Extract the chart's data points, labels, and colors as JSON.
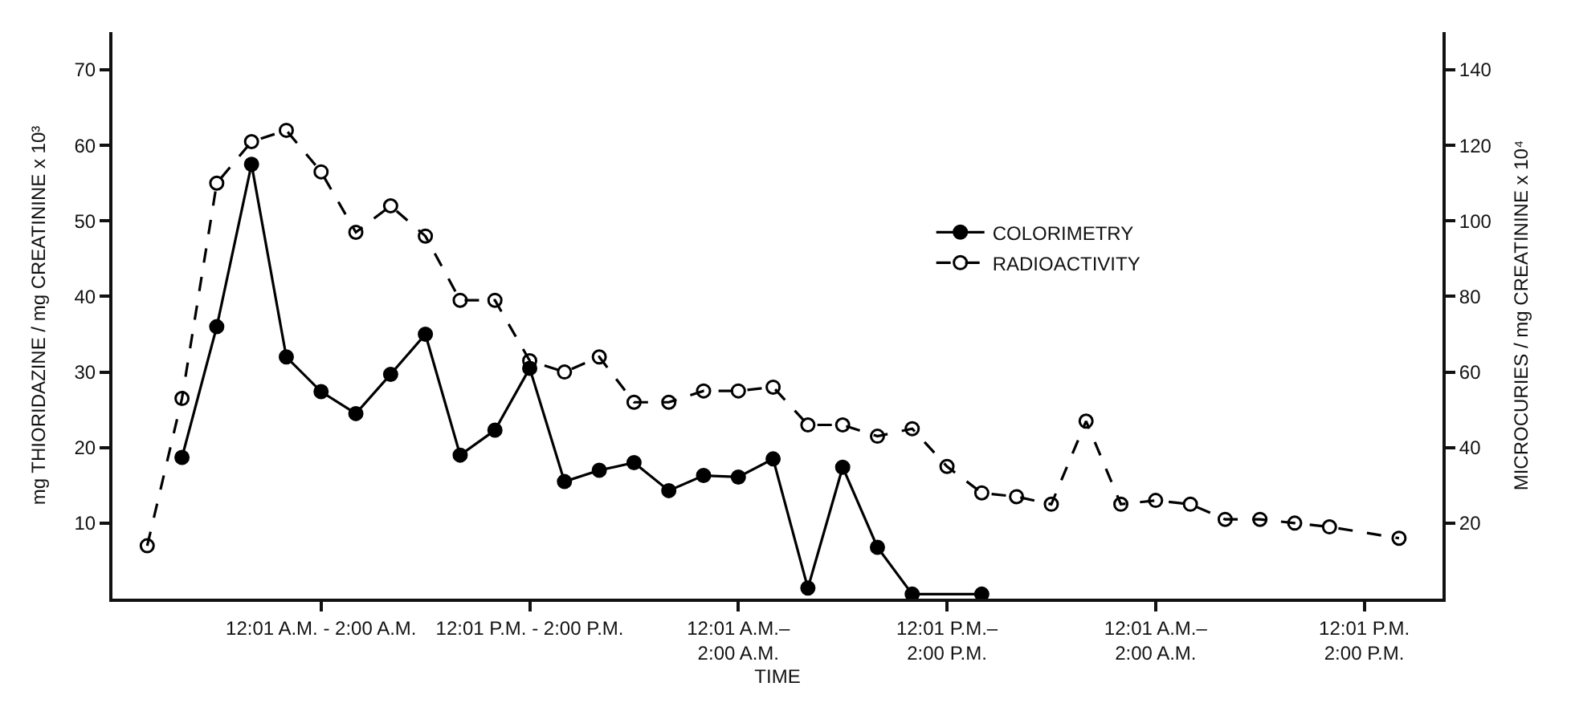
{
  "chart_data": {
    "type": "line",
    "xlabel": "TIME",
    "ylabel": "mg THIORIDAZINE / mg CREATININE x 10³",
    "y2label": "MICROCURIES / mg CREATININE x 10⁴",
    "categories": [
      null,
      null,
      null,
      null,
      null,
      "12:01 A.M. - 2:00 A.M.",
      null,
      null,
      null,
      null,
      null,
      "12:01 P.M. - 2:00 P.M.",
      null,
      null,
      null,
      null,
      null,
      "12:01 A.M.–\n2:00 A.M.",
      null,
      null,
      null,
      null,
      null,
      "12:01 P.M.–\n2:00 P.M.",
      null,
      null,
      null,
      null,
      null,
      "12:01 A.M.–\n2:00 A.M.",
      null,
      null,
      null,
      null,
      null,
      "12:01 P.M.\n2:00 P.M.",
      null
    ],
    "ylim": [
      0,
      75
    ],
    "yticks": [
      10,
      20,
      30,
      40,
      50,
      60,
      70
    ],
    "y2lim": [
      0,
      150
    ],
    "y2ticks": [
      20,
      40,
      60,
      80,
      100,
      120,
      140
    ],
    "legend": "right",
    "series": [
      {
        "name": "COLORIMETRY",
        "color": "#000000",
        "marker": "circle",
        "line_style": "solid",
        "values": [
          null,
          18.7,
          36,
          57.5,
          32,
          27.4,
          24.5,
          29.7,
          35,
          19,
          22.3,
          30.5,
          15.5,
          17,
          18,
          14.3,
          16.3,
          16.1,
          18.5,
          1.4,
          17.4,
          6.8,
          0.6,
          null,
          0.6,
          null,
          null,
          null,
          null,
          null,
          null,
          null,
          null,
          null,
          null,
          null,
          null
        ]
      },
      {
        "name": "RADIOACTIVITY",
        "color": "#000000",
        "marker": "circle-open",
        "line_style": "dashed",
        "axis": "y2",
        "values": [
          14,
          53,
          110,
          121,
          124,
          113,
          97,
          104,
          96,
          79,
          79,
          63,
          60,
          64,
          52,
          52,
          55,
          55,
          56,
          46,
          46,
          43,
          45,
          35,
          28,
          27,
          25,
          47,
          25,
          26,
          25,
          21,
          21,
          20,
          19,
          null,
          16
        ]
      }
    ]
  }
}
